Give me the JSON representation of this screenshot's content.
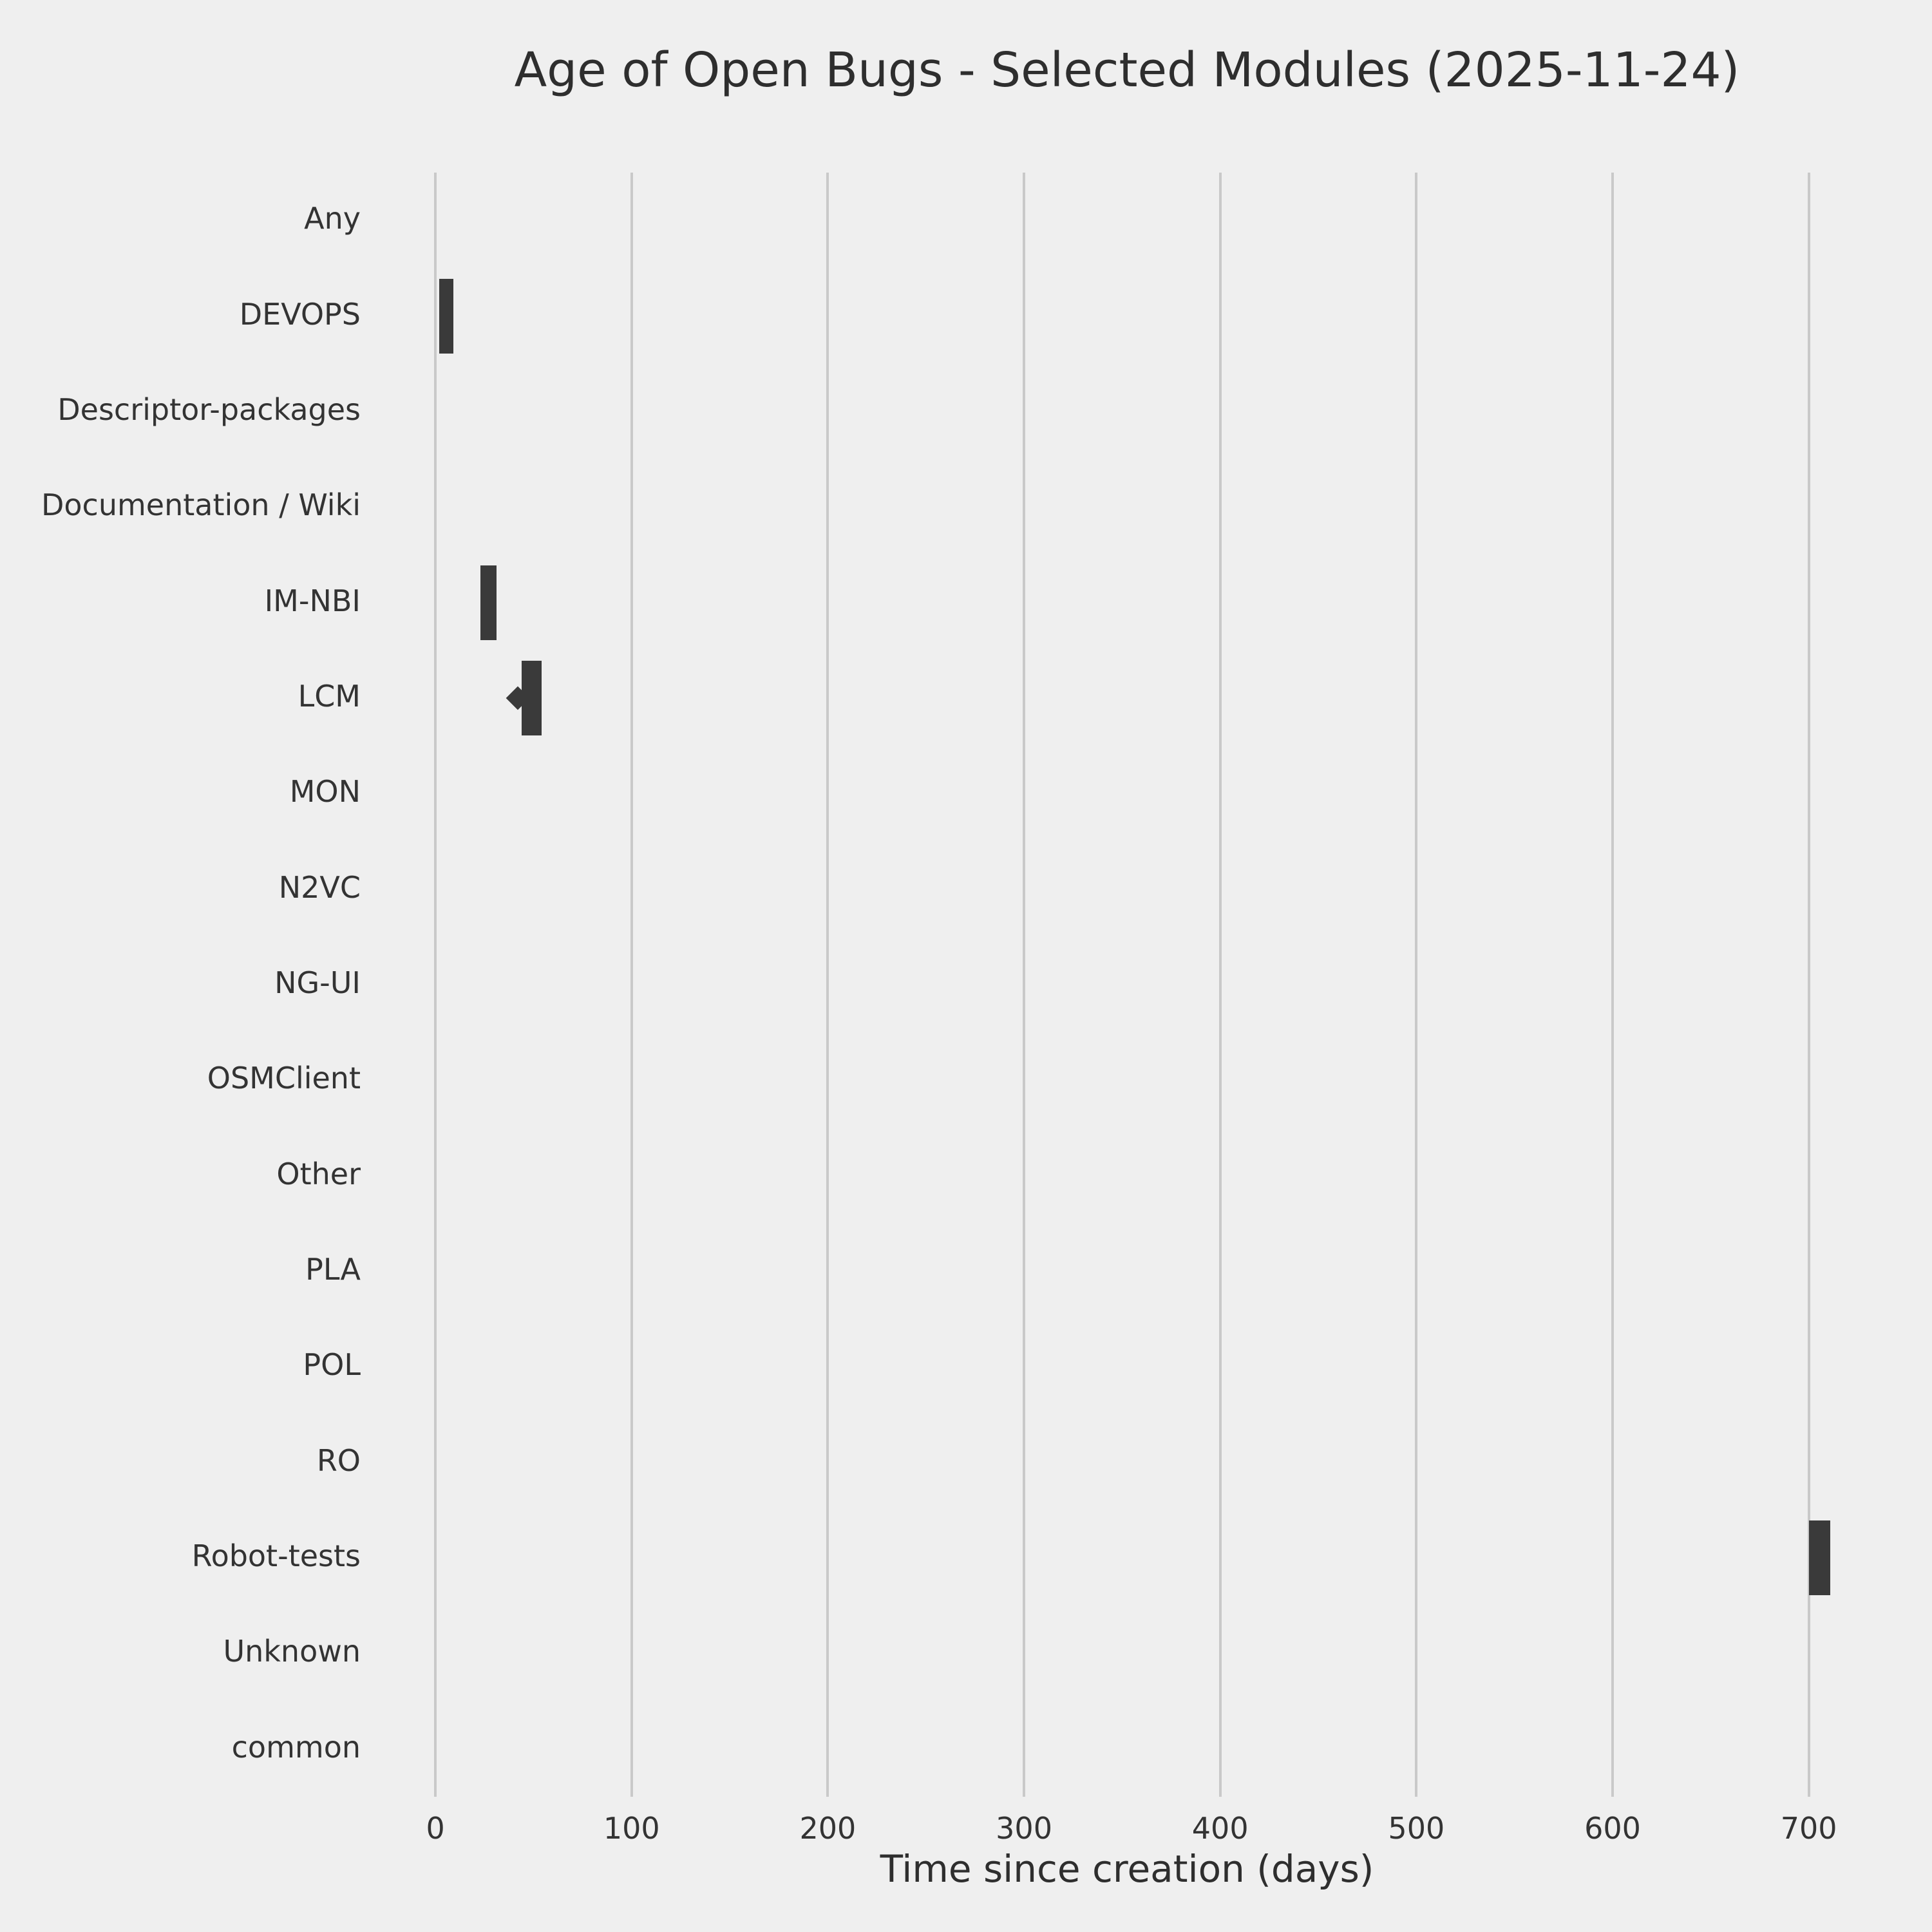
{
  "chart_data": {
    "type": "boxplot",
    "title": "Age of Open Bugs - Selected Modules (2025-11-24)",
    "xlabel": "Time since creation (days)",
    "ylabel": "",
    "xlim": [
      -25,
      730
    ],
    "xticks": [
      0,
      100,
      200,
      300,
      400,
      500,
      600,
      700
    ],
    "categories": [
      "Any",
      "DEVOPS",
      "Descriptor-packages",
      "Documentation / Wiki",
      "IM-NBI",
      "LCM",
      "MON",
      "N2VC",
      "NG-UI",
      "OSMClient",
      "Other",
      "PLA",
      "POL",
      "RO",
      "Robot-tests",
      "Unknown",
      "common"
    ],
    "boxes": [
      {
        "category": "DEVOPS",
        "min": 2,
        "max": 9
      },
      {
        "category": "IM-NBI",
        "min": 23,
        "max": 31
      },
      {
        "category": "LCM",
        "min": 44,
        "max": 54,
        "outlier": 42
      },
      {
        "category": "Robot-tests",
        "min": 700,
        "max": 711
      }
    ],
    "grid": true,
    "legend": null,
    "colors": {
      "background": "#efefef",
      "grid": "#c9c9c9",
      "box": "#3a3a3a",
      "text": "#333333"
    }
  }
}
